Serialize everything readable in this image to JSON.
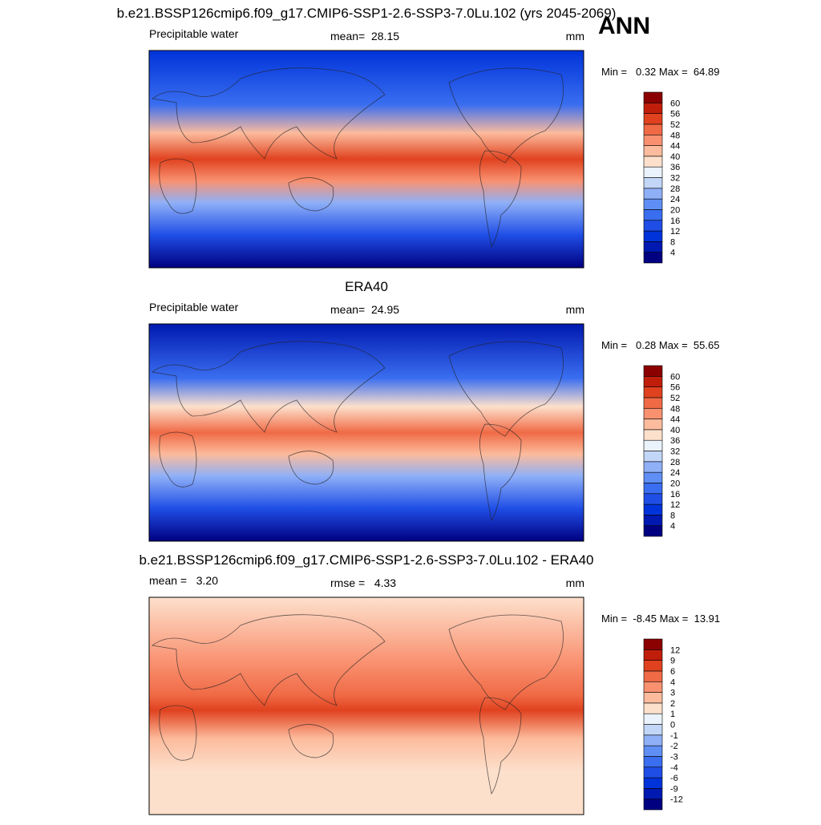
{
  "header": {
    "title": "ANN"
  },
  "panels": [
    {
      "title": "b.e21.BSSP126cmip6.f09_g17.CMIP6-SSP1-2.6-SSP3-7.0Lu.102 (yrs 2045-2069)",
      "left": "Precipitable water",
      "center": "mean=  28.15",
      "units": "mm",
      "range": "Min =   0.32 Max =  64.89",
      "colorbar": {
        "levels": [
          4,
          8,
          12,
          16,
          20,
          24,
          28,
          32,
          36,
          40,
          44,
          48,
          52,
          56,
          60
        ],
        "colors": [
          "#000080",
          "#0019b0",
          "#0033d9",
          "#1f4ee6",
          "#3a6ef0",
          "#5f8ff5",
          "#8fb0f7",
          "#c2d6f7",
          "#eaf2fb",
          "#fde0cc",
          "#fcbb9c",
          "#f99170",
          "#f06a46",
          "#e0421f",
          "#c01e0b",
          "#8b0000"
        ]
      }
    },
    {
      "title": "ERA40",
      "left": "Precipitable water",
      "center": "mean=  24.95",
      "units": "mm",
      "range": "Min =   0.28 Max =  55.65",
      "colorbar": {
        "levels": [
          4,
          8,
          12,
          16,
          20,
          24,
          28,
          32,
          36,
          40,
          44,
          48,
          52,
          56,
          60
        ],
        "colors": [
          "#000080",
          "#0019b0",
          "#0033d9",
          "#1f4ee6",
          "#3a6ef0",
          "#5f8ff5",
          "#8fb0f7",
          "#c2d6f7",
          "#eaf2fb",
          "#fde0cc",
          "#fcbb9c",
          "#f99170",
          "#f06a46",
          "#e0421f",
          "#c01e0b",
          "#8b0000"
        ]
      }
    },
    {
      "title": "b.e21.BSSP126cmip6.f09_g17.CMIP6-SSP1-2.6-SSP3-7.0Lu.102 - ERA40",
      "left": "mean =   3.20",
      "center": "rmse =   4.33",
      "units": "mm",
      "range": "Min =  -8.45 Max =  13.91",
      "colorbar": {
        "levels": [
          -12,
          -9,
          -6,
          -4,
          -3,
          -2,
          -1,
          0,
          1,
          2,
          3,
          4,
          6,
          9,
          12
        ],
        "colors": [
          "#000080",
          "#0019b0",
          "#0033d9",
          "#1f4ee6",
          "#3a6ef0",
          "#5f8ff5",
          "#8fb0f7",
          "#c2d6f7",
          "#eaf2fb",
          "#fde0cc",
          "#fcbb9c",
          "#f99170",
          "#f06a46",
          "#e0421f",
          "#c01e0b",
          "#8b0000"
        ]
      }
    }
  ]
}
